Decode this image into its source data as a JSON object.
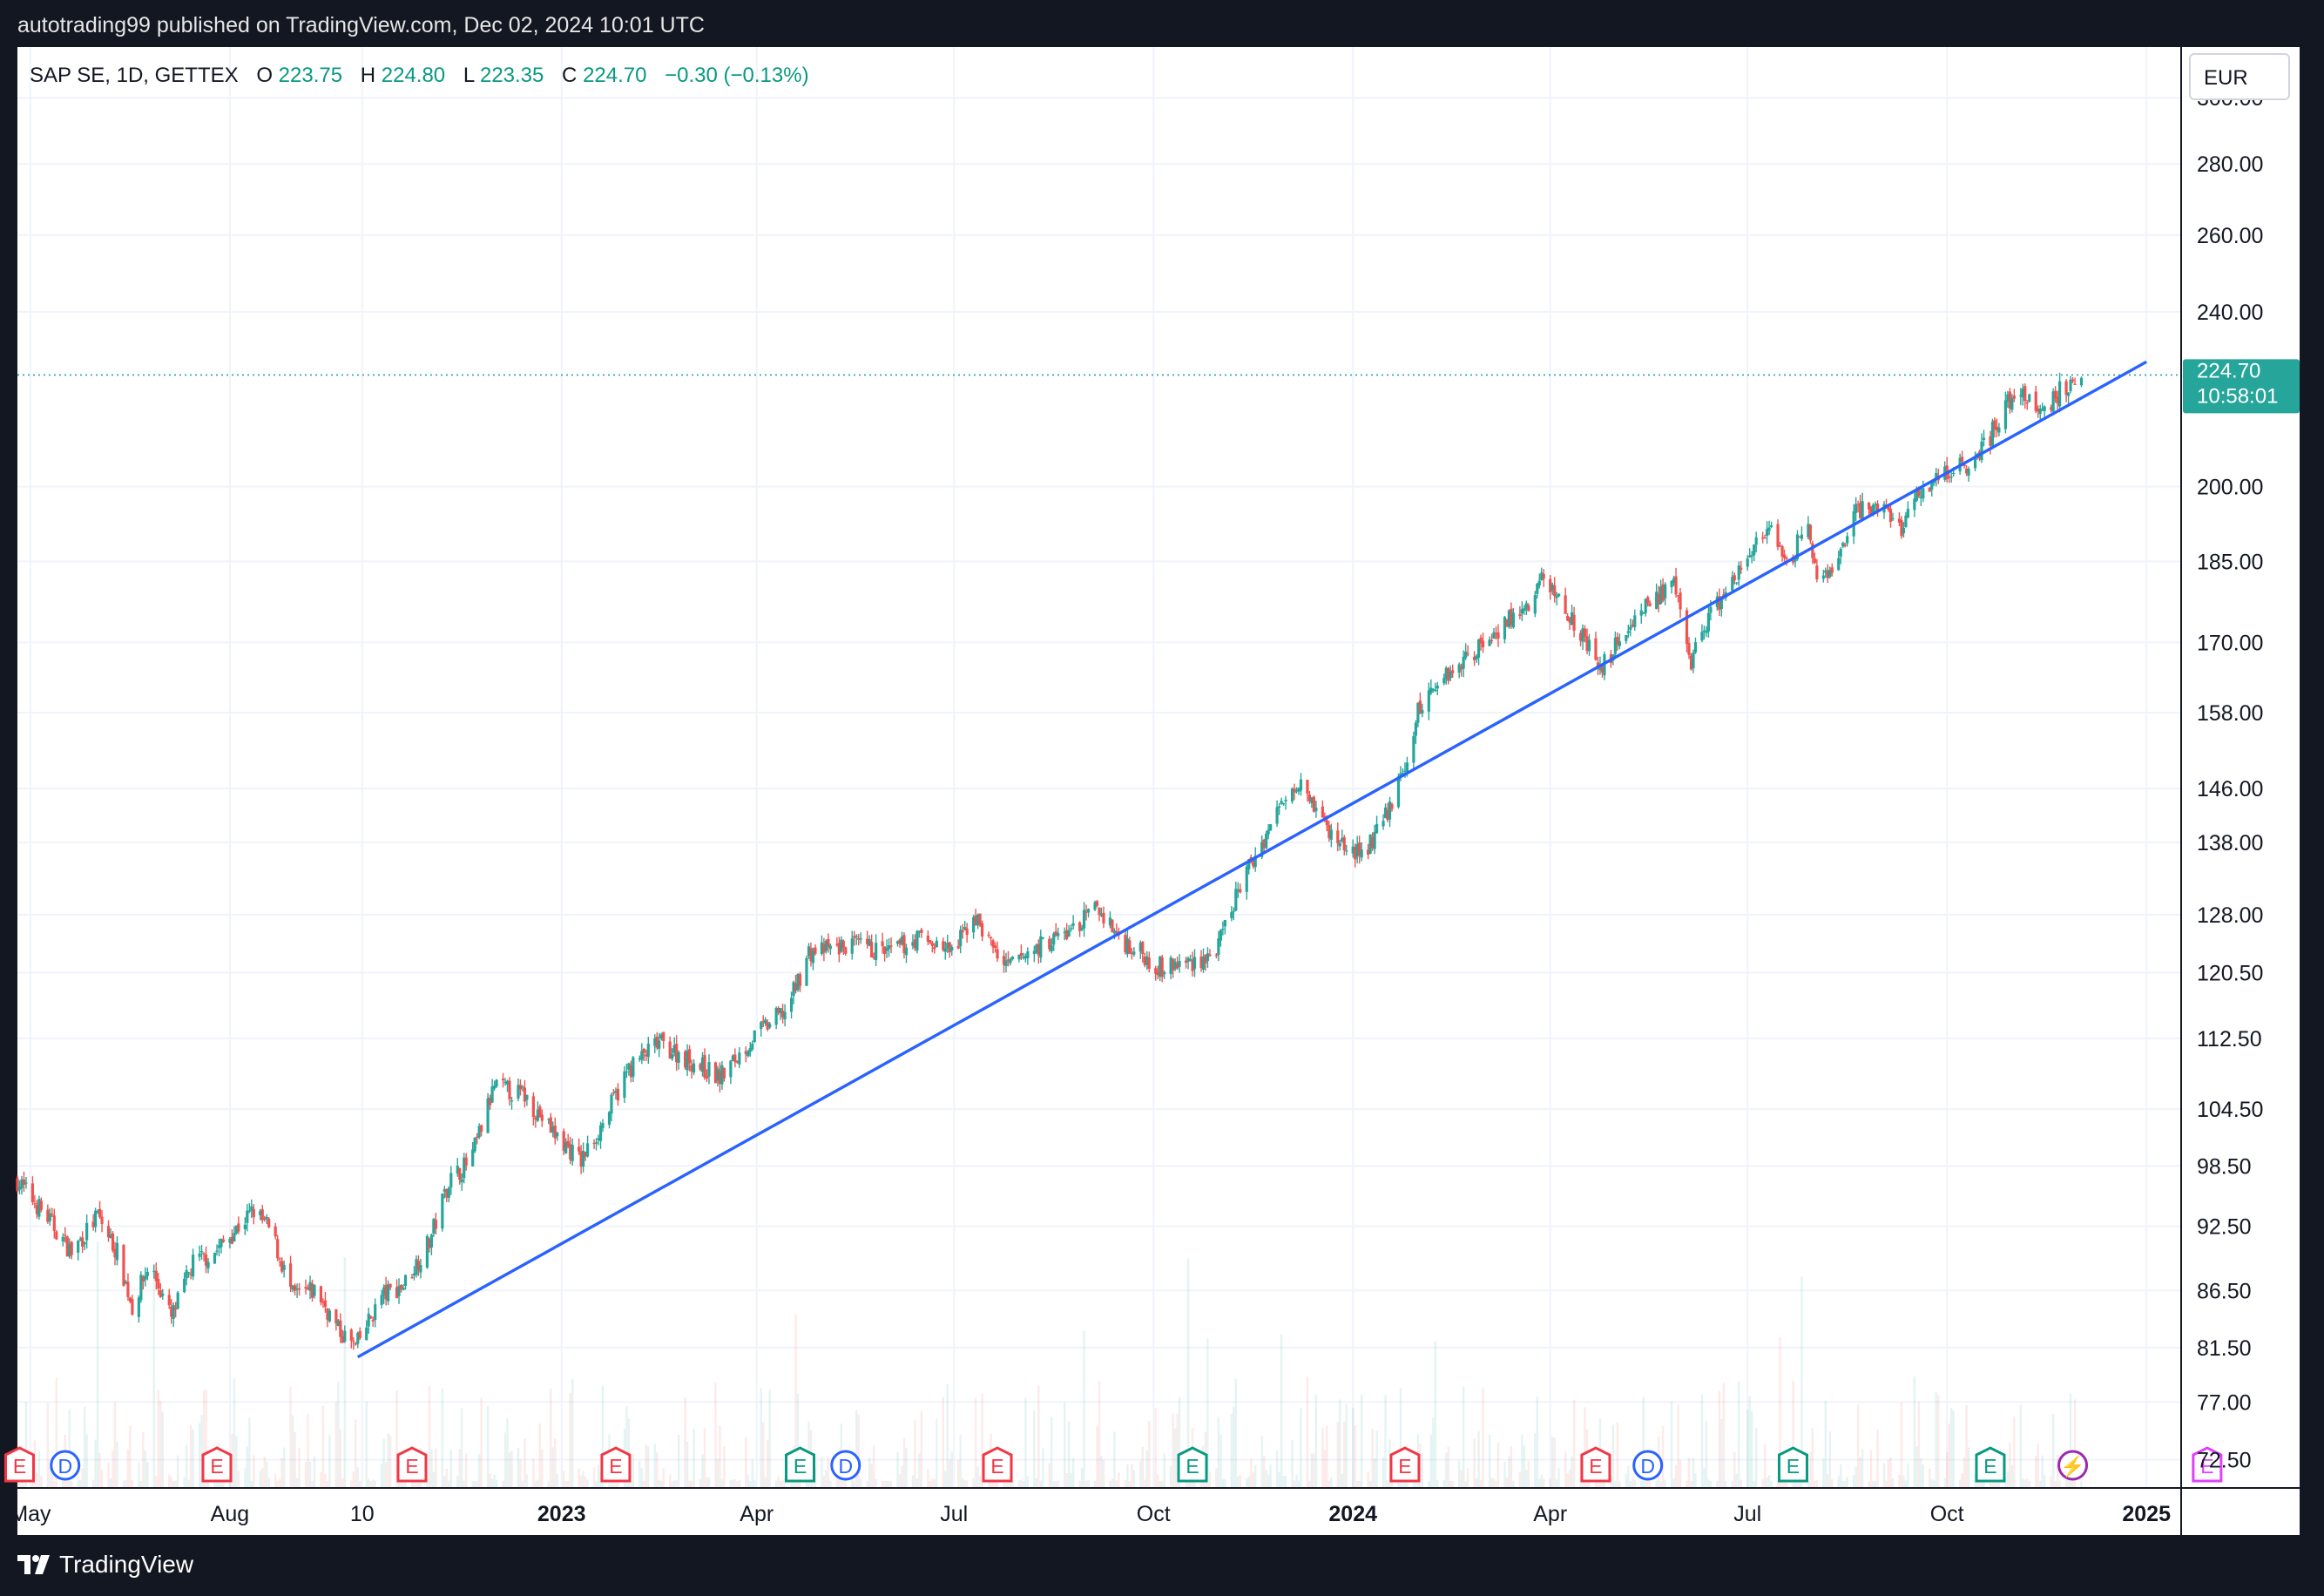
{
  "publisher_line": "autotrading99 published on TradingView.com, Dec 02, 2024 10:01 UTC",
  "brand": "TradingView",
  "legend": {
    "symbol": "SAP SE, 1D, GETTEX",
    "open_label": "O",
    "open": "223.75",
    "high_label": "H",
    "high": "224.80",
    "low_label": "L",
    "low": "223.35",
    "close_label": "C",
    "close": "224.70",
    "change": "−0.30 (−0.13%)"
  },
  "currency": "EUR",
  "price_badge": {
    "price": "224.70",
    "countdown": "10:58:01"
  },
  "colors": {
    "up": "#26a69a",
    "down": "#ef5350",
    "trendline": "#2962ff",
    "grid": "#f0f3fa",
    "text": "#131722",
    "frame": "#131722",
    "badge": "#26a69a",
    "earnings": "#f23645",
    "earnings_future": "#e040fb",
    "dividend": "#2962ff",
    "split": "#9c27b0",
    "earnings_beat": "#089981"
  },
  "chart_data": {
    "type": "candlestick",
    "title": "",
    "symbol": "SAP SE",
    "interval": "1D",
    "exchange": "GETTEX",
    "scale": "log",
    "grid": true,
    "xlabel": "",
    "ylabel": "",
    "y_ticks": [
      "300.00",
      "280.00",
      "260.00",
      "240.00",
      "224.70",
      "200.00",
      "185.00",
      "170.00",
      "158.00",
      "146.00",
      "138.00",
      "128.00",
      "120.50",
      "112.50",
      "104.50",
      "98.50",
      "92.50",
      "86.50",
      "81.50",
      "77.00",
      "72.50"
    ],
    "ylim": [
      70.4,
      316.3
    ],
    "x_range": [
      "2022-04-25",
      "2025-01-17"
    ],
    "x_ticks": [
      {
        "label": "May",
        "date": "2022-05-01",
        "bold": false
      },
      {
        "label": "Aug",
        "date": "2022-08-01",
        "bold": false
      },
      {
        "label": "10",
        "date": "2022-10-01",
        "bold": false
      },
      {
        "label": "2023",
        "date": "2023-01-01",
        "bold": true
      },
      {
        "label": "Apr",
        "date": "2023-04-01",
        "bold": false
      },
      {
        "label": "Jul",
        "date": "2023-07-01",
        "bold": false
      },
      {
        "label": "Oct",
        "date": "2023-10-01",
        "bold": false
      },
      {
        "label": "2024",
        "date": "2024-01-01",
        "bold": true
      },
      {
        "label": "Apr",
        "date": "2024-04-01",
        "bold": false
      },
      {
        "label": "Jul",
        "date": "2024-07-01",
        "bold": false
      },
      {
        "label": "Oct",
        "date": "2024-10-01",
        "bold": false
      },
      {
        "label": "2025",
        "date": "2025-01-01",
        "bold": true
      }
    ],
    "price_path": [
      [
        "2022-04-25",
        97
      ],
      [
        "2022-05-10",
        93
      ],
      [
        "2022-05-20",
        90
      ],
      [
        "2022-06-01",
        93.5
      ],
      [
        "2022-06-10",
        90
      ],
      [
        "2022-06-17",
        85
      ],
      [
        "2022-06-25",
        89
      ],
      [
        "2022-07-05",
        84
      ],
      [
        "2022-07-15",
        89
      ],
      [
        "2022-07-25",
        90
      ],
      [
        "2022-08-05",
        92.5
      ],
      [
        "2022-08-12",
        94
      ],
      [
        "2022-08-20",
        92
      ],
      [
        "2022-08-30",
        86
      ],
      [
        "2022-09-10",
        86.5
      ],
      [
        "2022-09-20",
        83
      ],
      [
        "2022-09-28",
        81.5
      ],
      [
        "2022-10-10",
        86
      ],
      [
        "2022-10-20",
        87
      ],
      [
        "2022-11-01",
        91
      ],
      [
        "2022-11-10",
        97
      ],
      [
        "2022-11-20",
        99
      ],
      [
        "2022-12-01",
        107
      ],
      [
        "2022-12-15",
        106
      ],
      [
        "2022-12-28",
        102
      ],
      [
        "2023-01-10",
        99
      ],
      [
        "2023-01-20",
        103
      ],
      [
        "2023-02-01",
        109
      ],
      [
        "2023-02-15",
        112
      ],
      [
        "2023-03-01",
        110
      ],
      [
        "2023-03-15",
        108
      ],
      [
        "2023-04-01",
        113
      ],
      [
        "2023-04-15",
        116
      ],
      [
        "2023-04-25",
        123
      ],
      [
        "2023-05-15",
        124
      ],
      [
        "2023-06-01",
        123
      ],
      [
        "2023-06-15",
        125
      ],
      [
        "2023-07-01",
        123
      ],
      [
        "2023-07-10",
        128
      ],
      [
        "2023-07-25",
        121
      ],
      [
        "2023-08-10",
        124
      ],
      [
        "2023-08-25",
        126
      ],
      [
        "2023-09-05",
        129
      ],
      [
        "2023-09-15",
        125
      ],
      [
        "2023-09-25",
        123
      ],
      [
        "2023-10-05",
        121
      ],
      [
        "2023-10-20",
        122
      ],
      [
        "2023-10-30",
        123
      ],
      [
        "2023-11-10",
        132
      ],
      [
        "2023-11-20",
        138
      ],
      [
        "2023-12-01",
        145
      ],
      [
        "2023-12-08",
        148
      ],
      [
        "2023-12-15",
        143
      ],
      [
        "2023-12-22",
        139
      ],
      [
        "2024-01-05",
        136
      ],
      [
        "2024-01-15",
        141
      ],
      [
        "2024-01-25",
        149
      ],
      [
        "2024-01-31",
        158
      ],
      [
        "2024-02-08",
        163
      ],
      [
        "2024-02-18",
        166
      ],
      [
        "2024-03-01",
        170
      ],
      [
        "2024-03-12",
        174
      ],
      [
        "2024-03-22",
        176
      ],
      [
        "2024-03-28",
        182
      ],
      [
        "2024-04-05",
        178
      ],
      [
        "2024-04-15",
        172
      ],
      [
        "2024-04-24",
        165
      ],
      [
        "2024-05-05",
        172
      ],
      [
        "2024-05-15",
        177
      ],
      [
        "2024-05-28",
        180
      ],
      [
        "2024-06-05",
        167
      ],
      [
        "2024-06-15",
        176
      ],
      [
        "2024-06-25",
        181
      ],
      [
        "2024-07-05",
        189
      ],
      [
        "2024-07-12",
        190
      ],
      [
        "2024-07-20",
        183
      ],
      [
        "2024-07-28",
        195
      ],
      [
        "2024-08-02",
        180
      ],
      [
        "2024-08-10",
        184
      ],
      [
        "2024-08-20",
        195
      ],
      [
        "2024-09-01",
        196
      ],
      [
        "2024-09-10",
        192
      ],
      [
        "2024-09-20",
        200
      ],
      [
        "2024-10-01",
        203
      ],
      [
        "2024-10-10",
        205
      ],
      [
        "2024-10-20",
        210
      ],
      [
        "2024-10-28",
        218
      ],
      [
        "2024-11-05",
        220
      ],
      [
        "2024-11-15",
        216
      ],
      [
        "2024-11-22",
        221
      ],
      [
        "2024-12-02",
        224.7
      ]
    ],
    "trendline": {
      "start": [
        "2022-09-29",
        80.7
      ],
      "end": [
        "2025-01-01",
        227.8
      ],
      "color": "#2962ff"
    },
    "last_price_line": 224.7,
    "events": [
      {
        "type": "earnings",
        "letter": "E",
        "date": "2022-04-26",
        "color": "#f23645"
      },
      {
        "type": "dividend",
        "letter": "D",
        "date": "2022-05-17",
        "color": "#2962ff"
      },
      {
        "type": "earnings",
        "letter": "E",
        "date": "2022-07-26",
        "color": "#f23645"
      },
      {
        "type": "earnings",
        "letter": "E",
        "date": "2022-10-24",
        "color": "#f23645"
      },
      {
        "type": "earnings",
        "letter": "E",
        "date": "2023-01-26",
        "color": "#f23645"
      },
      {
        "type": "earnings",
        "letter": "E",
        "date": "2023-04-21",
        "color": "#089981"
      },
      {
        "type": "dividend",
        "letter": "D",
        "date": "2023-05-12",
        "color": "#2962ff"
      },
      {
        "type": "earnings",
        "letter": "E",
        "date": "2023-07-21",
        "color": "#f23645"
      },
      {
        "type": "earnings",
        "letter": "E",
        "date": "2023-10-19",
        "color": "#089981"
      },
      {
        "type": "earnings",
        "letter": "E",
        "date": "2024-01-25",
        "color": "#f23645"
      },
      {
        "type": "earnings",
        "letter": "E",
        "date": "2024-04-22",
        "color": "#f23645"
      },
      {
        "type": "dividend",
        "letter": "D",
        "date": "2024-05-16",
        "color": "#2962ff"
      },
      {
        "type": "earnings",
        "letter": "E",
        "date": "2024-07-22",
        "color": "#089981"
      },
      {
        "type": "earnings",
        "letter": "E",
        "date": "2024-10-21",
        "color": "#089981"
      },
      {
        "type": "split",
        "letter": "⚡",
        "date": "2024-11-28",
        "color": "#9c27b0"
      },
      {
        "type": "earnings",
        "letter": "E",
        "date": "2025-01-29",
        "color": "#e040fb"
      }
    ]
  }
}
